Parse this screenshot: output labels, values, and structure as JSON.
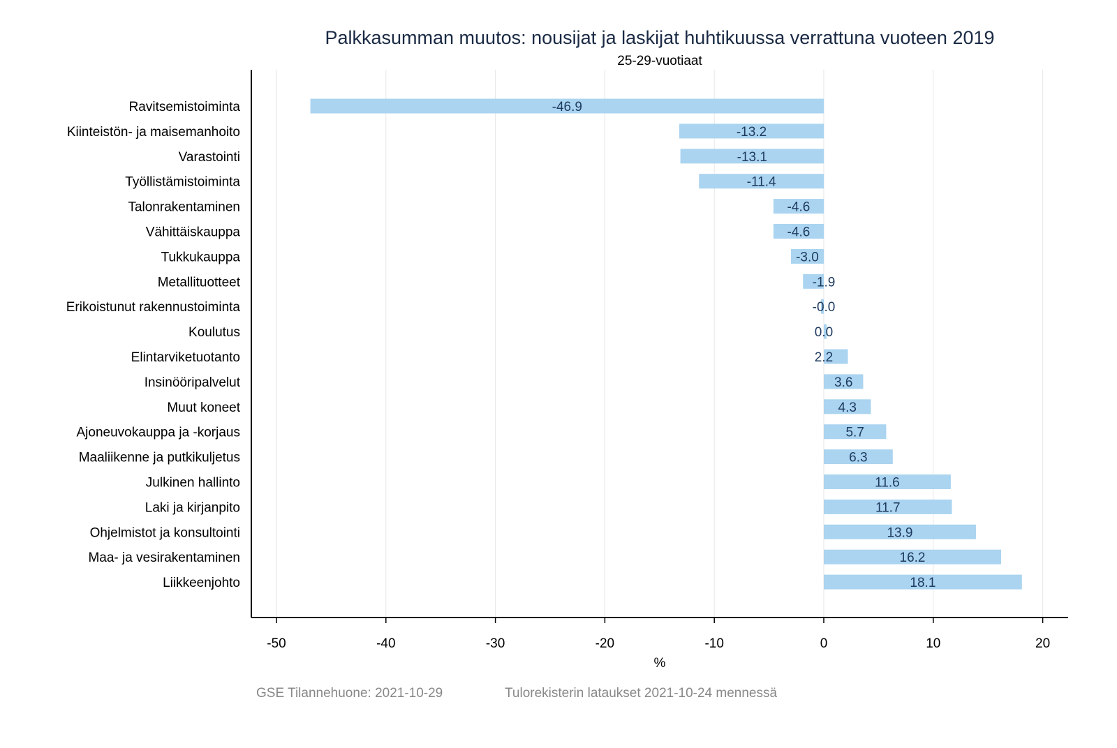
{
  "chart_data": {
    "type": "bar",
    "orientation": "horizontal",
    "title": "Palkkasumman muutos: nousijat ja laskijat huhtikuussa verrattuna vuoteen 2019",
    "subtitle": "25-29-vuotiaat",
    "xlabel": "%",
    "ylabel": "",
    "xlim": [
      -52.3,
      22.3
    ],
    "xticks": [
      -50,
      -40,
      -30,
      -20,
      -10,
      0,
      10,
      20
    ],
    "grid": true,
    "categories": [
      "Ravitsemistoiminta",
      "Kiinteistön- ja maisemanhoito",
      "Varastointi",
      "Työllistämistoiminta",
      "Talonrakentaminen",
      "Vähittäiskauppa",
      "Tukkukauppa",
      "Metallituotteet",
      "Erikoistunut rakennustoiminta",
      "Koulutus",
      "Elintarviketuotanto",
      "Insinööripalvelut",
      "Muut koneet",
      "Ajoneuvokauppa ja -korjaus",
      "Maaliikenne ja putkikuljetus",
      "Julkinen hallinto",
      "Laki ja kirjanpito",
      "Ohjelmistot ja konsultointi",
      "Maa- ja vesirakentaminen",
      "Liikkeenjohto"
    ],
    "values": [
      -46.9,
      -13.2,
      -13.1,
      -11.4,
      -4.6,
      -4.6,
      -3.0,
      -1.9,
      -0.0,
      0.0,
      2.2,
      3.6,
      4.3,
      5.7,
      6.3,
      11.6,
      11.7,
      13.9,
      16.2,
      18.1
    ],
    "value_labels": [
      "-46.9",
      "-13.2",
      "-13.1",
      "-11.4",
      "-4.6",
      "-4.6",
      "-3.0",
      "-1.9",
      "-0.0",
      "0.0",
      "2.2",
      "3.6",
      "4.3",
      "5.7",
      "6.3",
      "11.6",
      "11.7",
      "13.9",
      "16.2",
      "18.1"
    ],
    "colors": {
      "bar": "#aad4f0",
      "label": "#1e3a5f",
      "title": "#1a2a44",
      "footer": "#888888",
      "grid": "#e6e6e6"
    }
  },
  "footer": {
    "source": "GSE Tilannehuone: 2021-10-29",
    "note": "Tulorekisterin lataukset 2021-10-24 mennessä"
  }
}
